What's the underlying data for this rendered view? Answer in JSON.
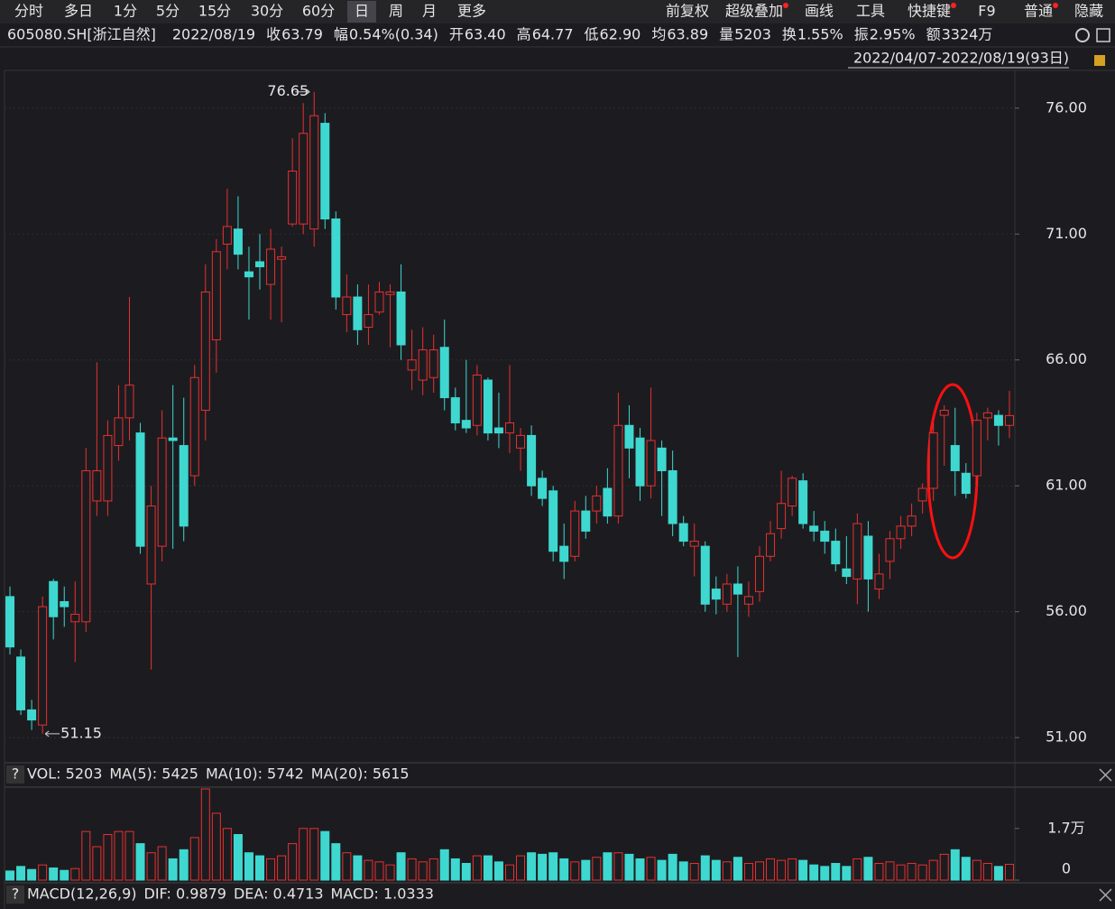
{
  "toolbar": {
    "tabs": [
      "分时",
      "多日",
      "1分",
      "5分",
      "15分",
      "30分",
      "60分",
      "日",
      "周",
      "月",
      "更多"
    ],
    "selected_tab": 7,
    "right": [
      {
        "text": "前复权",
        "dot": false
      },
      {
        "text": "超级叠加",
        "dot": true
      },
      {
        "text": "画线",
        "dot": false
      },
      {
        "text": "工具",
        "dot": false
      },
      {
        "text": "快捷键",
        "dot": true
      },
      {
        "text": "F9",
        "dot": false
      },
      {
        "text": "普通",
        "dot": true
      },
      {
        "text": "隐藏",
        "dot": false
      }
    ]
  },
  "info": {
    "code": "605080.SH[浙江自然]",
    "date": "2022/08/19",
    "items": [
      {
        "label": "收",
        "value": "63.79",
        "color": "#ff4d4d"
      },
      {
        "label": "幅",
        "value": "0.54%(0.34)",
        "color": "#ff4d4d"
      },
      {
        "label": "开",
        "value": "63.40",
        "color": "#3ad13a"
      },
      {
        "label": "高",
        "value": "64.77",
        "color": "#ff4d4d"
      },
      {
        "label": "低",
        "value": "62.90",
        "color": "#3ad13a"
      },
      {
        "label": "均",
        "value": "63.89",
        "color": "#ff4d4d"
      },
      {
        "label": "量",
        "value": "5203",
        "color": "#e6e6e6"
      },
      {
        "label": "换",
        "value": "1.55%",
        "color": "#e6e6e6"
      },
      {
        "label": "振",
        "value": "2.95%",
        "color": "#e6e6e6"
      },
      {
        "label": "额",
        "value": "3324万",
        "color": "#e6e6e6"
      }
    ],
    "range": "2022/04/07-2022/08/19(93日)"
  },
  "chart_data": [
    {
      "type": "candlestick",
      "up_color": "#e8302f",
      "down_color": "#3ed8d0",
      "ylim": [
        50.0,
        77.5
      ],
      "yticks": [
        {
          "value": 51,
          "label": "51.00"
        },
        {
          "value": 56,
          "label": "56.00"
        },
        {
          "value": 61,
          "label": "61.00"
        },
        {
          "value": 66,
          "label": "66.00"
        },
        {
          "value": 71,
          "label": "71.00"
        },
        {
          "value": 76,
          "label": "76.00"
        }
      ],
      "open": [
        56.6,
        54.2,
        52.1,
        51.5,
        57.2,
        56.4,
        55.6,
        55.6,
        60.4,
        60.4,
        62.6,
        63.7,
        63.1,
        57.1,
        58.6,
        62.9,
        62.6,
        61.4,
        64.0,
        66.8,
        70.6,
        71.2,
        69.5,
        69.9,
        69.0,
        70.0,
        71.4,
        71.4,
        71.2,
        75.4,
        71.6,
        67.8,
        68.5,
        67.3,
        67.9,
        68.6,
        68.7,
        65.6,
        65.2,
        65.3,
        66.5,
        64.5,
        63.6,
        63.4,
        65.2,
        63.3,
        63.1,
        62.5,
        63.0,
        61.3,
        60.8,
        58.6,
        58.2,
        60.0,
        60.0,
        60.9,
        59.8,
        63.4,
        62.9,
        61.0,
        62.5,
        61.6,
        59.5,
        58.6,
        58.6,
        56.9,
        56.3,
        57.1,
        56.3,
        56.8,
        58.2,
        59.3,
        60.2,
        61.2,
        59.4,
        59.2,
        58.8,
        57.7,
        57.3,
        59.0,
        56.9,
        58.0,
        58.9,
        59.4,
        60.4,
        60.9,
        63.8,
        62.6,
        61.5,
        61.4,
        63.7,
        63.8,
        63.4
      ],
      "high": [
        57.0,
        54.5,
        52.5,
        56.6,
        57.3,
        57.0,
        57.2,
        62.5,
        65.9,
        63.6,
        65.0,
        68.5,
        63.5,
        61.0,
        64.0,
        65.0,
        64.5,
        65.8,
        69.8,
        70.8,
        72.8,
        72.5,
        70.5,
        71.0,
        71.2,
        70.5,
        74.8,
        76.2,
        76.65,
        75.8,
        71.9,
        69.4,
        69.0,
        69.0,
        69.1,
        69.0,
        69.8,
        67.2,
        67.3,
        67.0,
        67.6,
        64.9,
        66.0,
        65.8,
        65.3,
        64.7,
        65.8,
        63.3,
        63.4,
        61.6,
        61.0,
        59.5,
        60.4,
        60.6,
        61.0,
        61.7,
        64.7,
        64.2,
        63.3,
        64.9,
        62.8,
        62.4,
        59.8,
        59.5,
        58.8,
        57.4,
        57.5,
        57.8,
        57.2,
        58.6,
        59.6,
        61.6,
        61.4,
        61.5,
        60.0,
        59.6,
        59.3,
        59.0,
        59.9,
        59.6,
        58.3,
        59.2,
        59.8,
        60.3,
        61.1,
        63.5,
        64.2,
        64.1,
        61.9,
        63.9,
        64.1,
        64.0,
        64.77
      ],
      "low": [
        54.3,
        51.9,
        51.3,
        51.15,
        54.9,
        55.4,
        54.0,
        55.2,
        59.8,
        59.8,
        62.0,
        62.8,
        58.3,
        53.7,
        58.0,
        58.5,
        58.8,
        61.0,
        62.8,
        65.5,
        69.6,
        69.6,
        67.6,
        68.8,
        67.6,
        67.5,
        71.3,
        71.0,
        70.5,
        71.2,
        68.0,
        67.1,
        66.6,
        66.6,
        67.8,
        66.5,
        66.0,
        64.8,
        64.6,
        64.7,
        64.0,
        63.2,
        63.1,
        63.0,
        62.8,
        62.5,
        62.3,
        61.6,
        60.6,
        60.2,
        58.0,
        57.3,
        58.0,
        58.9,
        59.5,
        59.5,
        59.5,
        61.3,
        60.4,
        60.5,
        59.8,
        59.0,
        58.6,
        57.4,
        56.0,
        55.9,
        56.0,
        54.2,
        55.8,
        56.4,
        58.0,
        58.9,
        59.8,
        59.3,
        58.8,
        58.3,
        57.6,
        57.1,
        56.3,
        56.0,
        56.5,
        57.3,
        58.5,
        59.0,
        59.9,
        60.4,
        61.8,
        60.6,
        60.5,
        61.0,
        62.8,
        62.6,
        62.9
      ],
      "close": [
        54.6,
        52.1,
        51.7,
        56.2,
        55.8,
        56.2,
        55.9,
        61.6,
        61.6,
        63.0,
        63.7,
        65.0,
        58.6,
        60.2,
        62.9,
        62.8,
        59.4,
        65.3,
        68.7,
        70.3,
        71.3,
        70.2,
        69.3,
        69.7,
        70.4,
        70.1,
        73.5,
        75.0,
        75.7,
        71.6,
        68.5,
        68.5,
        67.2,
        67.8,
        68.7,
        68.7,
        66.6,
        66.0,
        66.4,
        66.4,
        64.5,
        63.5,
        63.3,
        65.4,
        63.1,
        63.1,
        63.5,
        63.0,
        61.0,
        60.5,
        58.4,
        58.0,
        60.0,
        59.2,
        60.6,
        59.8,
        63.4,
        62.5,
        61.0,
        62.8,
        61.6,
        59.5,
        58.8,
        58.8,
        56.3,
        56.5,
        57.1,
        56.7,
        56.6,
        58.2,
        59.1,
        60.3,
        61.3,
        59.5,
        59.2,
        58.8,
        57.9,
        57.4,
        59.5,
        57.3,
        57.5,
        58.9,
        59.4,
        59.8,
        60.9,
        63.1,
        64.0,
        61.6,
        60.7,
        63.6,
        63.9,
        63.4,
        63.79
      ],
      "annotations": [
        "76.65",
        "51.15"
      ]
    },
    {
      "type": "bar",
      "header": [
        {
          "text": "VOL: 5203",
          "color": "#e6e6e6"
        },
        {
          "text": "MA(5): 5425",
          "color": "#e6e6e6"
        },
        {
          "text": "MA(10): 5742",
          "color": "#f0a020"
        },
        {
          "text": "MA(20): 5615",
          "color": "#e040e0"
        }
      ],
      "ylim": [
        0,
        30600
      ],
      "yticks": [
        0,
        {
          "value": 17000,
          "label": "1.7万"
        }
      ],
      "values": [
        3000,
        4500,
        3500,
        5000,
        4000,
        3200,
        3800,
        16000,
        11000,
        15000,
        16000,
        16000,
        12000,
        9000,
        11000,
        7000,
        10000,
        14000,
        30000,
        22000,
        17000,
        15000,
        9000,
        8000,
        7000,
        8000,
        12000,
        17000,
        17000,
        16000,
        12000,
        9000,
        8000,
        6500,
        6000,
        5000,
        9000,
        7000,
        6000,
        7000,
        10000,
        7000,
        5500,
        8000,
        8000,
        6000,
        5000,
        8000,
        9000,
        8500,
        9000,
        7000,
        6000,
        6500,
        7500,
        9000,
        9000,
        8500,
        7000,
        7500,
        6500,
        8500,
        6000,
        5500,
        8000,
        6500,
        6000,
        7500,
        5500,
        6000,
        7000,
        6500,
        7000,
        6500,
        5000,
        4500,
        5500,
        4500,
        7000,
        7500,
        5500,
        6000,
        5000,
        5500,
        5000,
        6500,
        8500,
        10000,
        7500,
        6500,
        5500,
        4500,
        5203
      ]
    },
    {
      "type": "macd",
      "header": [
        {
          "text": "MACD(12,26,9)",
          "color": "#e6e6e6"
        },
        {
          "text": "DIF: 0.9879",
          "color": "#e6e6e6"
        },
        {
          "text": "DEA: 0.4713",
          "color": "#f0a020"
        },
        {
          "text": "MACD: 1.0333",
          "color": "#3ed8d0"
        }
      ]
    }
  ]
}
